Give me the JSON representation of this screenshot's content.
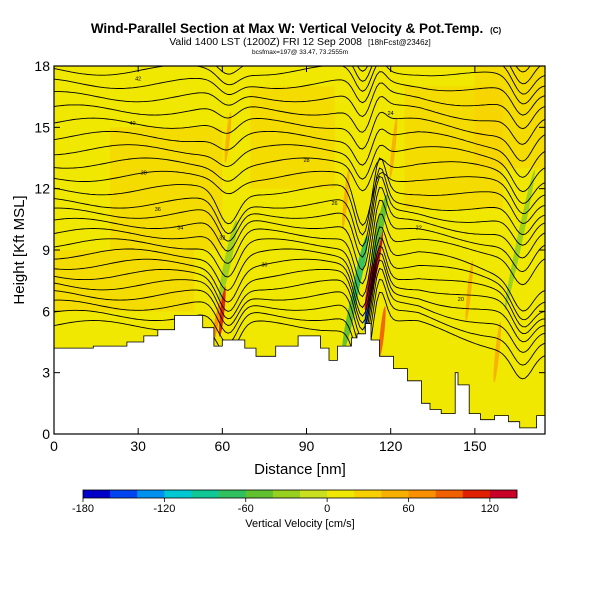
{
  "chart_data": {
    "type": "contour",
    "title": "Wind-Parallel Section at Max W: Vertical Velocity & Pot.Temp.",
    "title_mark": "(C)",
    "subtitle": "Valid 1400 LST (1200Z) FRI 12 Sep 2008",
    "subtitle_tag": "[18hFcst@2346z]",
    "subtitle2": "bcsfmax=197@ 33.47, 73.2555m",
    "xlabel": "Distance [nm]",
    "ylabel": "Height [Kft MSL]",
    "xlim": [
      0,
      175
    ],
    "ylim": [
      0,
      18
    ],
    "xticks": [
      0,
      30,
      60,
      90,
      120,
      150
    ],
    "yticks": [
      0,
      3,
      6,
      9,
      12,
      15,
      18
    ],
    "colorbar": {
      "label": "Vertical Velocity [cm/s]",
      "range": [
        -180,
        140
      ],
      "ticks": [
        -180,
        -120,
        -60,
        0,
        60,
        120
      ],
      "colors": [
        "#0000c8",
        "#0044f0",
        "#0090f0",
        "#00c8d2",
        "#10c896",
        "#30c060",
        "#60c030",
        "#98d020",
        "#c8e020",
        "#f0e800",
        "#f8d000",
        "#f8b000",
        "#f89000",
        "#f06000",
        "#e02000",
        "#c80028"
      ]
    },
    "theta_contour_labels": [
      "42",
      "40",
      "38",
      "36",
      "34",
      "32",
      "30",
      "28",
      "26",
      "24",
      "22",
      "20"
    ],
    "terrain": [
      [
        0,
        4.2
      ],
      [
        14,
        4.2
      ],
      [
        14,
        4.3
      ],
      [
        26,
        4.3
      ],
      [
        26,
        4.5
      ],
      [
        32,
        4.5
      ],
      [
        32,
        4.8
      ],
      [
        37,
        4.8
      ],
      [
        37,
        5.1
      ],
      [
        43,
        5.1
      ],
      [
        43,
        5.8
      ],
      [
        53,
        5.8
      ],
      [
        53,
        5.2
      ],
      [
        57,
        5.2
      ],
      [
        57,
        4.3
      ],
      [
        60,
        4.3
      ],
      [
        60,
        4.6
      ],
      [
        68,
        4.6
      ],
      [
        68,
        4.2
      ],
      [
        72,
        4.2
      ],
      [
        72,
        3.8
      ],
      [
        79,
        3.8
      ],
      [
        79,
        4.3
      ],
      [
        87,
        4.3
      ],
      [
        87,
        4.8
      ],
      [
        95,
        4.8
      ],
      [
        95,
        4.2
      ],
      [
        98,
        4.2
      ],
      [
        98,
        3.6
      ],
      [
        101,
        3.6
      ],
      [
        101,
        4.3
      ],
      [
        106,
        4.3
      ],
      [
        106,
        4.7
      ],
      [
        108,
        4.7
      ],
      [
        108,
        4.9
      ],
      [
        111,
        4.9
      ],
      [
        111,
        5.4
      ],
      [
        113,
        5.4
      ],
      [
        113,
        4.6
      ],
      [
        116,
        4.6
      ],
      [
        116,
        3.8
      ],
      [
        121,
        3.8
      ],
      [
        121,
        3.2
      ],
      [
        126,
        3.2
      ],
      [
        126,
        2.6
      ],
      [
        131,
        2.6
      ],
      [
        131,
        1.5
      ],
      [
        134,
        1.5
      ],
      [
        134,
        1.2
      ],
      [
        138,
        1.2
      ],
      [
        138,
        1.0
      ],
      [
        143,
        1.0
      ],
      [
        143,
        3.0
      ],
      [
        144,
        3.0
      ],
      [
        144,
        2.4
      ],
      [
        148,
        2.4
      ],
      [
        148,
        1.0
      ],
      [
        152,
        1.0
      ],
      [
        152,
        0.7
      ],
      [
        157,
        0.7
      ],
      [
        157,
        0.9
      ],
      [
        162,
        0.9
      ],
      [
        162,
        0.6
      ],
      [
        166,
        0.6
      ],
      [
        166,
        0.3
      ],
      [
        172,
        0.3
      ],
      [
        172,
        0.9
      ],
      [
        175,
        0.9
      ]
    ],
    "vv_features": [
      {
        "x": 58,
        "y": 5.5,
        "w": 1.5,
        "h": 3.5,
        "value": 60
      },
      {
        "x": 60,
        "y": 6.0,
        "w": 1.0,
        "h": 2.5,
        "value": 100
      },
      {
        "x": 62,
        "y": 8.5,
        "w": 2.5,
        "h": 4.0,
        "value": -40
      },
      {
        "x": 62,
        "y": 14.5,
        "w": 1.2,
        "h": 2.5,
        "value": 40
      },
      {
        "x": 106,
        "y": 6.0,
        "w": 2.5,
        "h": 4.0,
        "value": -60
      },
      {
        "x": 109,
        "y": 8.0,
        "w": 2.5,
        "h": 3.5,
        "value": -80
      },
      {
        "x": 112,
        "y": 6.5,
        "w": 1.5,
        "h": 3.0,
        "value": -160
      },
      {
        "x": 114,
        "y": 8.0,
        "w": 2.5,
        "h": 4.0,
        "value": 120
      },
      {
        "x": 116,
        "y": 10.0,
        "w": 2.5,
        "h": 3.5,
        "value": -60
      },
      {
        "x": 117,
        "y": 5.0,
        "w": 1.5,
        "h": 2.5,
        "value": 80
      },
      {
        "x": 104,
        "y": 11.5,
        "w": 1.5,
        "h": 3.0,
        "value": 40
      },
      {
        "x": 121,
        "y": 14.0,
        "w": 1.0,
        "h": 3.0,
        "value": 40
      },
      {
        "x": 148,
        "y": 7.0,
        "w": 1.0,
        "h": 3.0,
        "value": 40
      },
      {
        "x": 166,
        "y": 9.5,
        "w": 2.0,
        "h": 7.0,
        "value": -40
      },
      {
        "x": 158,
        "y": 4.0,
        "w": 1.5,
        "h": 3.0,
        "value": 40
      }
    ]
  }
}
